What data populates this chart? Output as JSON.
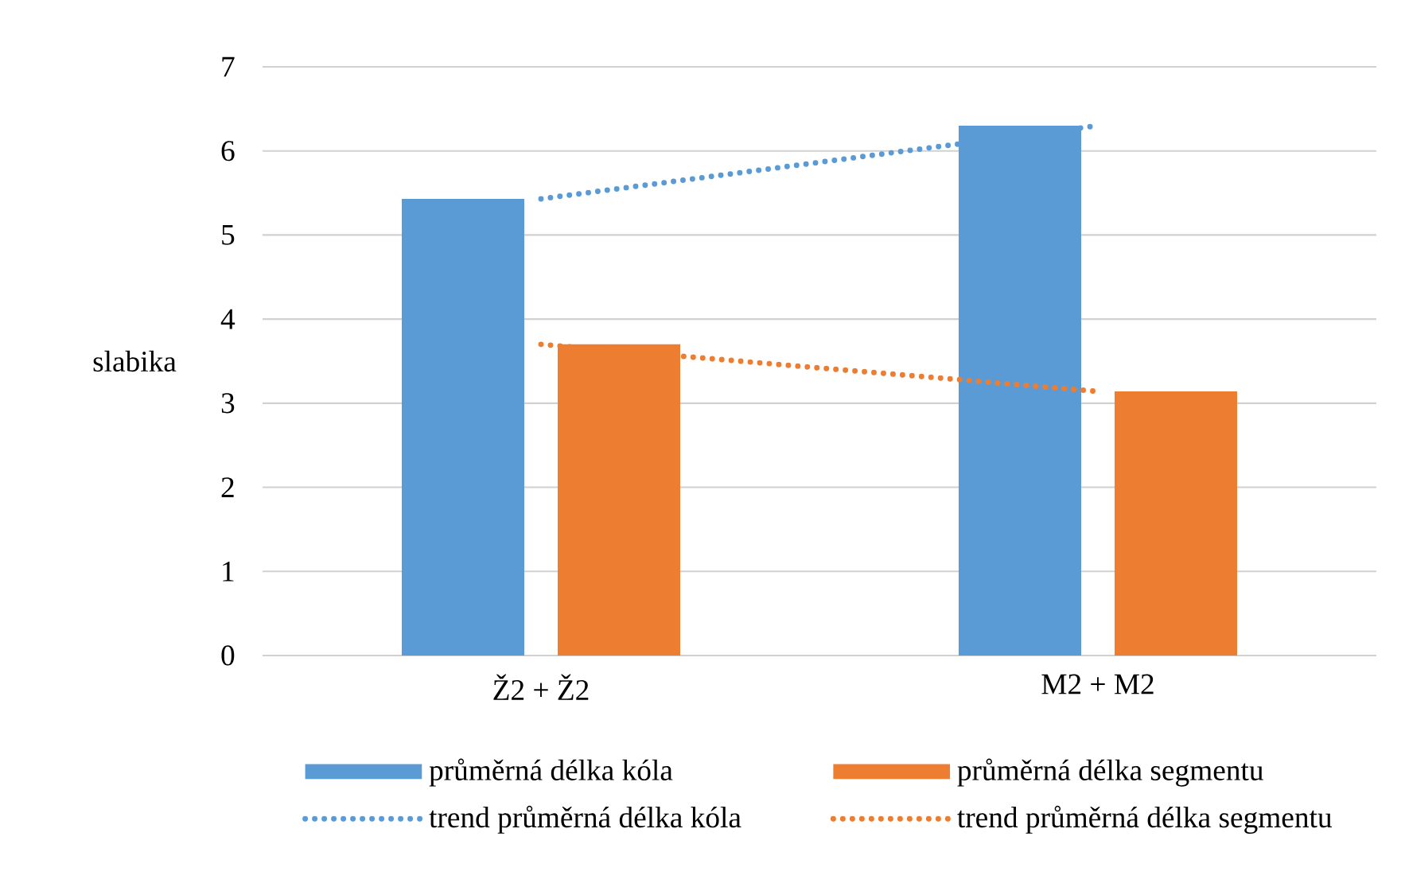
{
  "chart_data": {
    "type": "bar",
    "ylabel": "slabika",
    "categories": [
      "Ž2 + Ž2",
      "M2 + M2"
    ],
    "series": [
      {
        "name": "průměrná délka kóla",
        "color": "#5b9bd5",
        "values": [
          5.43,
          6.3
        ]
      },
      {
        "name": "průměrná délka segmentu",
        "color": "#ed7d31",
        "values": [
          3.7,
          3.14
        ]
      },
      {
        "name": "trend průměrná délka kóla",
        "type": "line",
        "line_style": "dotted",
        "color": "#5b9bd5",
        "values": [
          5.43,
          6.3
        ]
      },
      {
        "name": "trend průměrná délka segmentu",
        "type": "line",
        "line_style": "dotted",
        "color": "#ed7d31",
        "values": [
          3.7,
          3.14
        ]
      }
    ],
    "ylim": [
      0,
      7
    ],
    "yticks": [
      0,
      1,
      2,
      3,
      4,
      5,
      6,
      7
    ],
    "grid": "y",
    "legend": "bottom",
    "marker": "none"
  }
}
